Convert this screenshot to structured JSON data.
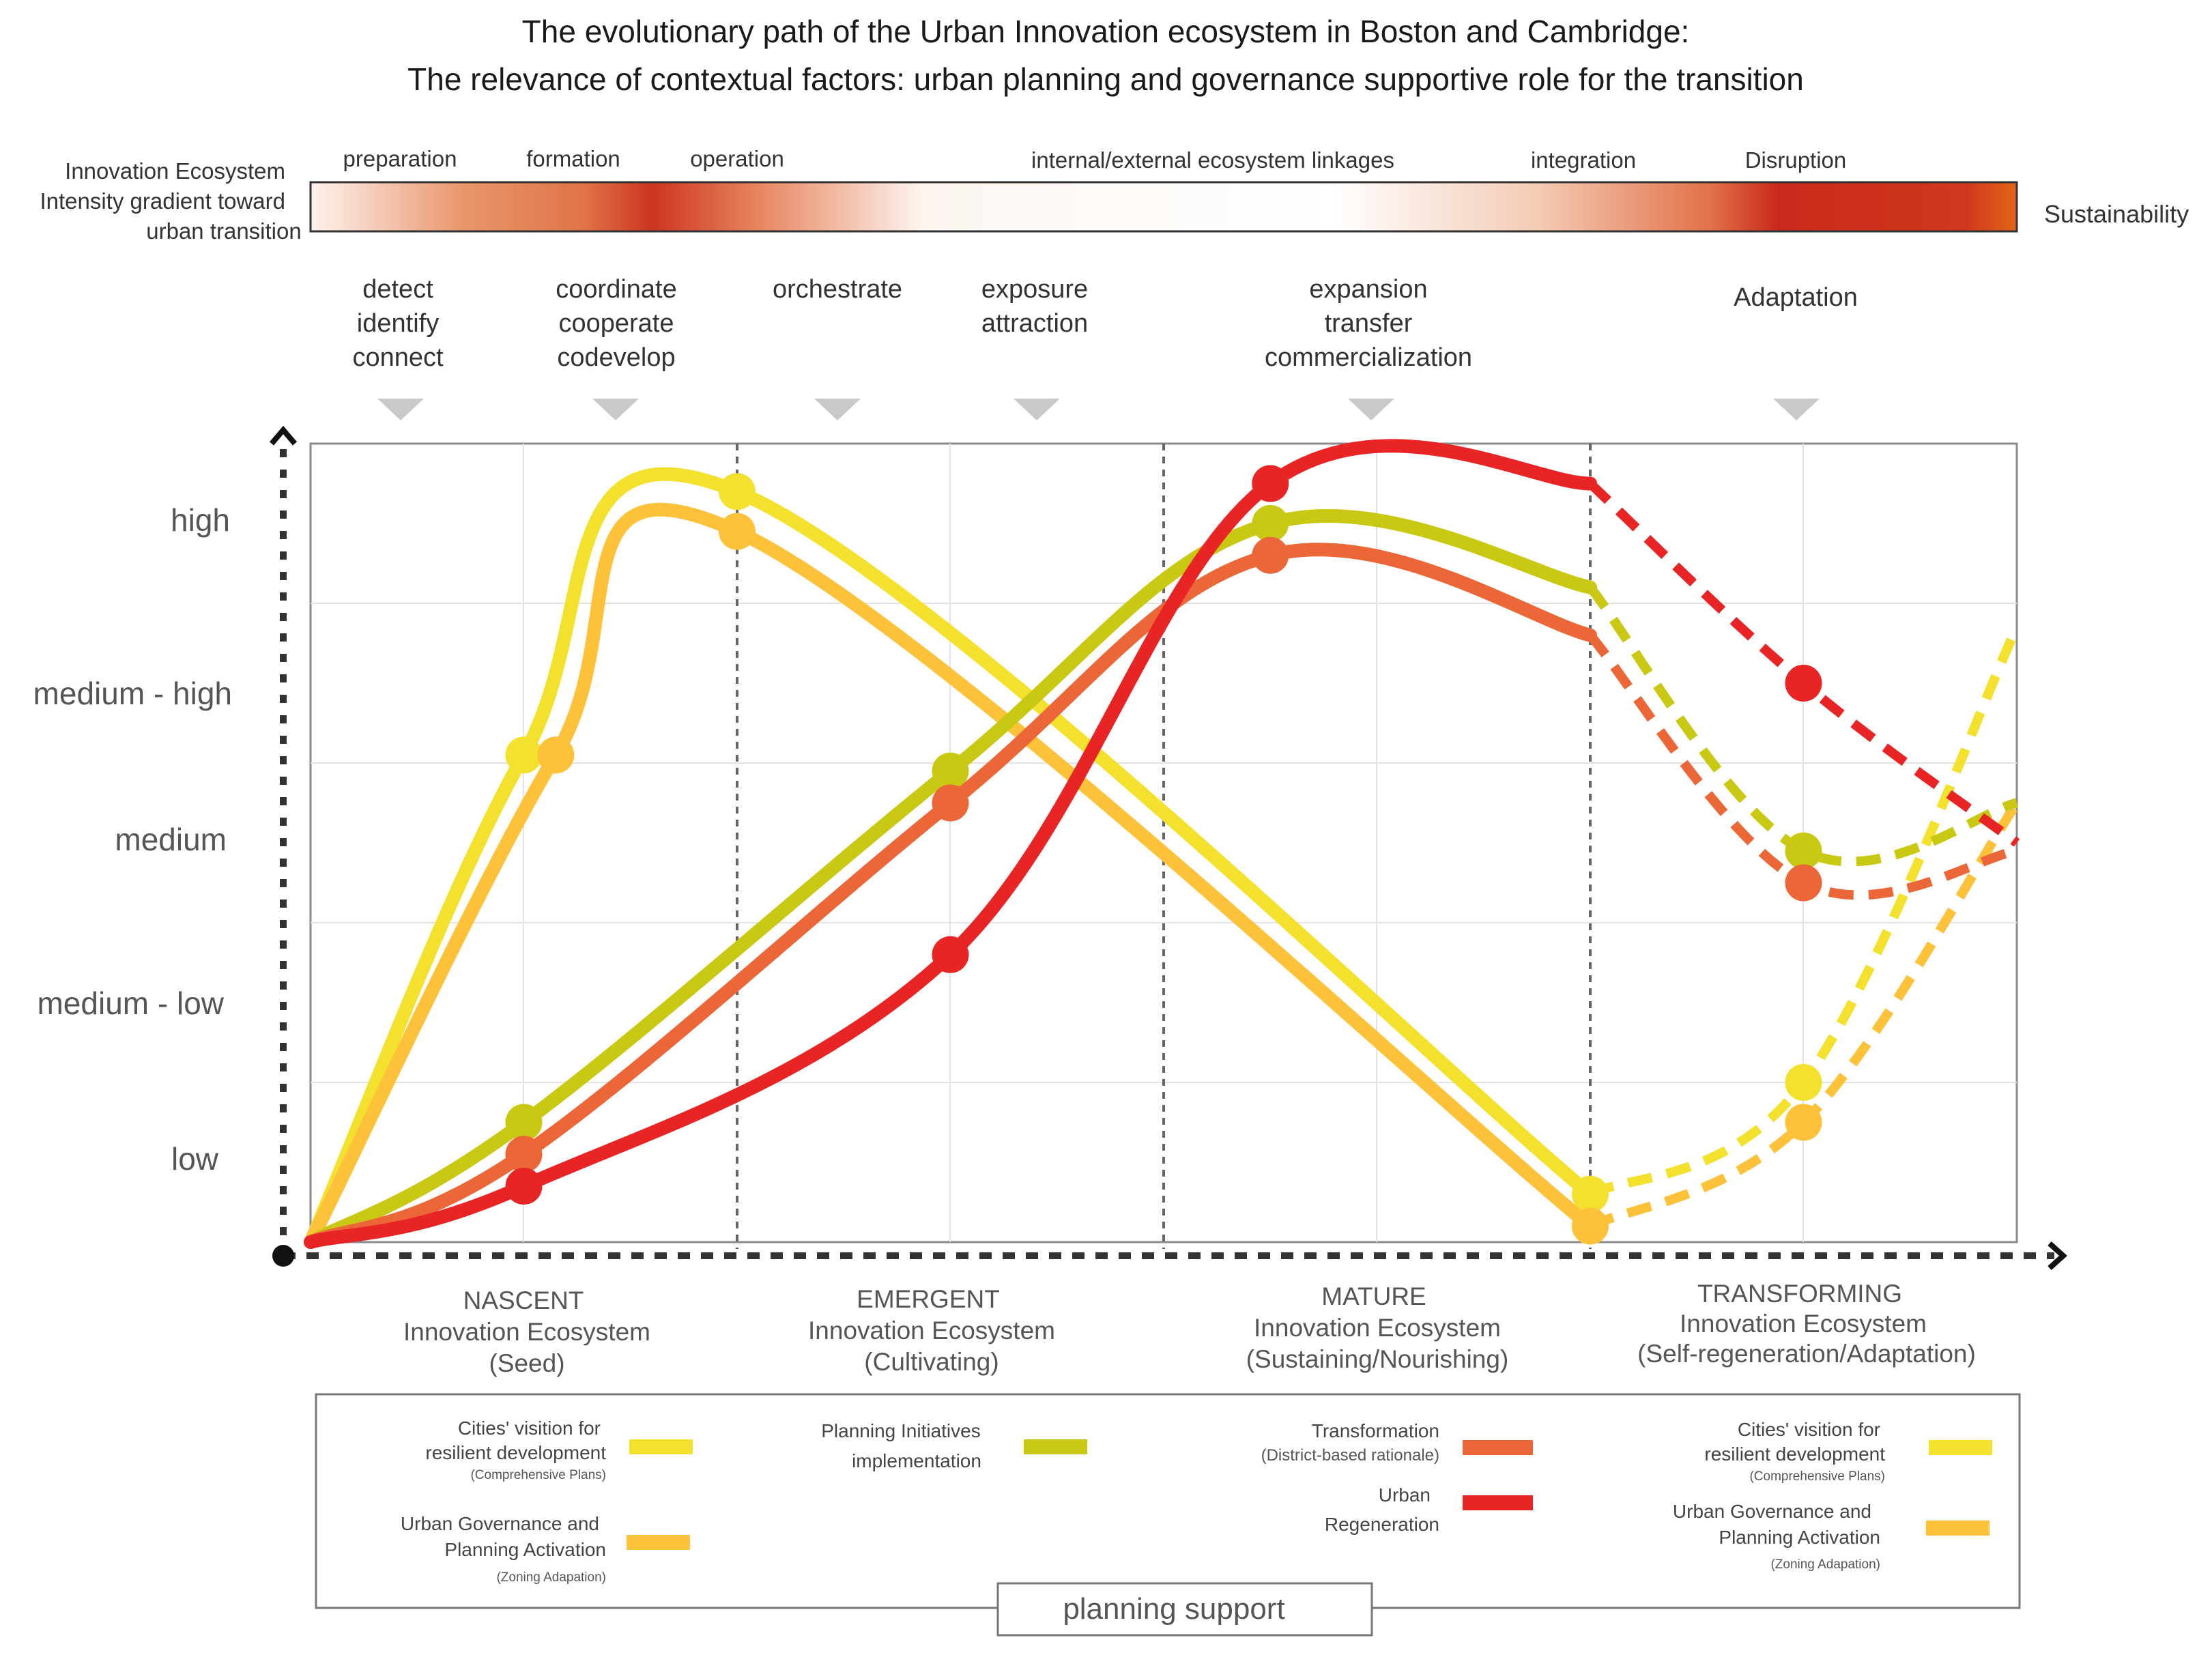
{
  "title": {
    "line1": "The evolutionary path of the Urban Innovation ecosystem in Boston and Cambridge:",
    "line2": "The relevance of contextual factors: urban planning and governance supportive role for the transition"
  },
  "intensity_bar": {
    "label_lines": [
      "Innovation Ecosystem",
      "Intensity gradient toward",
      "urban transition"
    ],
    "end_label": "Sustainability",
    "stage_labels": [
      "preparation",
      "formation",
      "operation",
      "internal/external ecosystem linkages",
      "integration",
      "Disruption"
    ],
    "colors": {
      "light": "#fdf3ee",
      "mid": "#e07448",
      "dark": "#c8291c",
      "end": "#e46418"
    }
  },
  "actions": [
    {
      "lines": [
        "detect",
        "identify",
        "connect"
      ]
    },
    {
      "lines": [
        "coordinate",
        "cooperate",
        "codevelop"
      ]
    },
    {
      "lines": [
        "orchestrate"
      ]
    },
    {
      "lines": [
        "exposure",
        "attraction"
      ]
    },
    {
      "lines": [
        "expansion",
        "transfer",
        "commercialization"
      ]
    },
    {
      "lines": [
        "Adaptation"
      ]
    }
  ],
  "y_levels": [
    "high",
    "medium - high",
    "medium",
    "medium - low",
    "low"
  ],
  "phases": [
    {
      "name": "NASCENT",
      "line2": "Innovation Ecosystem",
      "line3": "(Seed)"
    },
    {
      "name": "EMERGENT",
      "line2": "Innovation Ecosystem",
      "line3": "(Cultivating)"
    },
    {
      "name": "MATURE",
      "line2": "Innovation Ecosystem",
      "line3": "(Sustaining/Nourishing)"
    },
    {
      "name": "TRANSFORMING",
      "line2": "Innovation Ecosystem",
      "line3": "(Self-regeneration/Adaptation)"
    }
  ],
  "legend": {
    "items": [
      {
        "lines": [
          "Cities' visition for",
          "resilient development"
        ],
        "note": "(Comprehensive Plans)",
        "color": "#f3e12e"
      },
      {
        "lines": [
          "Urban Governance and",
          "Planning Activation"
        ],
        "note": "(Zoning Adapation)",
        "color": "#fdc23a"
      },
      {
        "lines": [
          "Planning Initiatives",
          "implementation"
        ],
        "note": "",
        "color": "#c9c812"
      },
      {
        "lines": [
          "Transformation"
        ],
        "note": "(District-based rationale)",
        "color": "#ec6738"
      },
      {
        "lines": [
          "Urban",
          "Regeneration"
        ],
        "note": "",
        "color": "#e82424"
      },
      {
        "lines": [
          "Cities' visition for",
          "resilient development"
        ],
        "note": "(Comprehensive Plans)",
        "color": "#f3e12e"
      },
      {
        "lines": [
          "Urban Governance and",
          "Planning Activation"
        ],
        "note": "(Zoning Adapation)",
        "color": "#fdc23a"
      }
    ],
    "footer": "planning support"
  },
  "chart_data": {
    "type": "line",
    "x_axis_phases": [
      "NASCENT",
      "EMERGENT",
      "MATURE",
      "TRANSFORMING"
    ],
    "x_range": [
      0,
      8
    ],
    "y_range": [
      0,
      5
    ],
    "y_ticks": [
      "low",
      "medium - low",
      "medium",
      "medium - high",
      "high"
    ],
    "phase_boundaries": [
      2,
      4,
      6
    ],
    "series": [
      {
        "name": "Cities' visition for resilient development",
        "color": "#f3e12e",
        "solid": [
          [
            0,
            0
          ],
          [
            1,
            3.05
          ],
          [
            2,
            4.7
          ],
          [
            6,
            0.3
          ]
        ],
        "dashed": [
          [
            6,
            0.3
          ],
          [
            7,
            1
          ],
          [
            8,
            3.85
          ]
        ],
        "markers": [
          [
            1,
            3.05
          ],
          [
            2,
            4.7
          ],
          [
            6,
            0.3
          ],
          [
            7,
            1
          ]
        ]
      },
      {
        "name": "Urban Governance and Planning Activation",
        "color": "#fdc23a",
        "solid": [
          [
            0,
            0
          ],
          [
            1.15,
            3.05
          ],
          [
            2,
            4.45
          ],
          [
            6,
            0.1
          ]
        ],
        "dashed": [
          [
            6,
            0.1
          ],
          [
            7,
            0.75
          ],
          [
            8,
            2.75
          ]
        ],
        "markers": [
          [
            1.15,
            3.05
          ],
          [
            2,
            4.45
          ],
          [
            6,
            0.1
          ],
          [
            7,
            0.75
          ]
        ]
      },
      {
        "name": "Planning Initiatives implementation",
        "color": "#c9c812",
        "solid": [
          [
            0,
            0
          ],
          [
            1,
            0.75
          ],
          [
            3,
            2.95
          ],
          [
            4.5,
            4.5
          ],
          [
            6,
            4.1
          ]
        ],
        "dashed": [
          [
            6,
            4.1
          ],
          [
            7,
            2.45
          ],
          [
            8,
            2.75
          ]
        ],
        "markers": [
          [
            1,
            0.75
          ],
          [
            3,
            2.95
          ],
          [
            4.5,
            4.5
          ],
          [
            7,
            2.45
          ]
        ]
      },
      {
        "name": "Transformation (District-based rationale)",
        "color": "#ec6738",
        "solid": [
          [
            0,
            0
          ],
          [
            1,
            0.55
          ],
          [
            3,
            2.75
          ],
          [
            4.5,
            4.3
          ],
          [
            6,
            3.8
          ]
        ],
        "dashed": [
          [
            6,
            3.8
          ],
          [
            7,
            2.25
          ],
          [
            8,
            2.45
          ]
        ],
        "markers": [
          [
            1,
            0.55
          ],
          [
            3,
            2.75
          ],
          [
            4.5,
            4.3
          ],
          [
            7,
            2.25
          ]
        ]
      },
      {
        "name": "Urban Regeneration",
        "color": "#e82424",
        "solid": [
          [
            0,
            0
          ],
          [
            1,
            0.35
          ],
          [
            3,
            1.8
          ],
          [
            4.5,
            4.75
          ],
          [
            6,
            4.75
          ]
        ],
        "dashed": [
          [
            6,
            4.75
          ],
          [
            7,
            3.5
          ],
          [
            8,
            2.5
          ]
        ],
        "markers": [
          [
            1,
            0.35
          ],
          [
            3,
            1.8
          ],
          [
            4.5,
            4.75
          ],
          [
            7,
            3.5
          ]
        ]
      }
    ]
  }
}
